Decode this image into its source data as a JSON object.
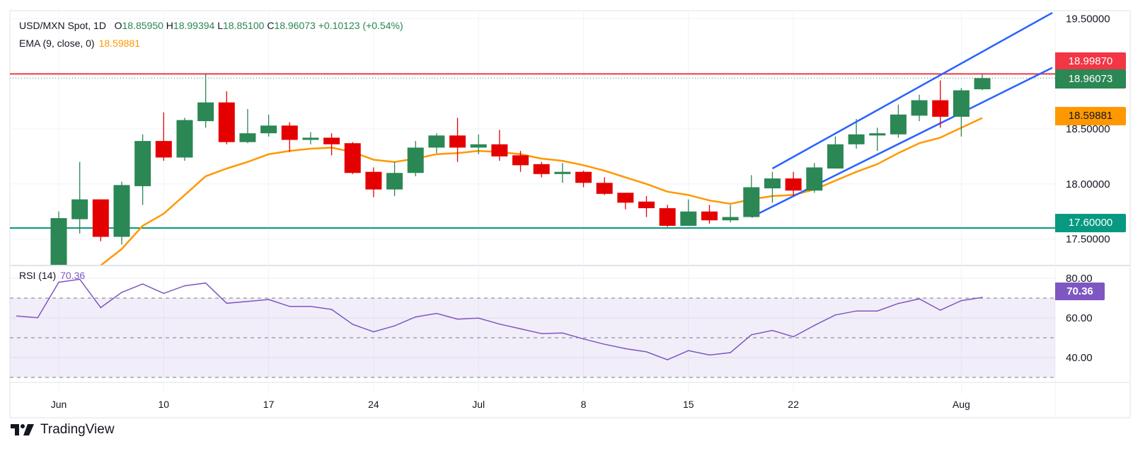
{
  "header": {
    "symbol": "USD/MXN Spot, 1D",
    "open_label": "O",
    "open": "18.85950",
    "high_label": "H",
    "high": "18.99394",
    "low_label": "L",
    "low": "18.85100",
    "close_label": "C",
    "close": "18.96073",
    "change": "+0.10123 (+0.54%)",
    "ema_label": "EMA (9, close, 0)",
    "ema_value": "18.59881"
  },
  "rsi_legend": {
    "label": "RSI (14)",
    "value": "70.36"
  },
  "badges": {
    "resistance": "18.99870",
    "last_price": "18.96073",
    "ema": "18.59881",
    "support": "17.60000",
    "rsi": "70.36"
  },
  "colors": {
    "up": "#2b8754",
    "down": "#e50000",
    "ema": "#ff9800",
    "channel": "#2962ff",
    "resistance": "#f23645",
    "support": "#089981",
    "rsi": "#7e57c2"
  },
  "brand": {
    "name": "TradingView"
  },
  "chart_data": [
    {
      "type": "candlestick",
      "title": "USD/MXN Spot, 1D",
      "ylim": [
        17.31,
        19.57
      ],
      "y_ticks": [
        "19.50000",
        "18.50000",
        "18.00000",
        "17.50000"
      ],
      "y_tick_values": [
        19.5,
        18.5,
        18.0,
        17.5
      ],
      "x_ticks": [
        {
          "date": "Jun 3",
          "label": "Jun"
        },
        {
          "date": "Jun 10",
          "label": "10"
        },
        {
          "date": "Jun 17",
          "label": "17"
        },
        {
          "date": "Jun 24",
          "label": "24"
        },
        {
          "date": "Jul 1",
          "label": "Jul"
        },
        {
          "date": "Jul 8",
          "label": "8"
        },
        {
          "date": "Jul 15",
          "label": "15"
        },
        {
          "date": "Jul 22",
          "label": "22"
        },
        {
          "date": "Aug 1",
          "label": "Aug"
        }
      ],
      "grid": true,
      "dates": [
        "May 30",
        "May 31",
        "Jun 3",
        "Jun 4",
        "Jun 5",
        "Jun 6",
        "Jun 7",
        "Jun 10",
        "Jun 11",
        "Jun 12",
        "Jun 13",
        "Jun 14",
        "Jun 17",
        "Jun 18",
        "Jun 19",
        "Jun 20",
        "Jun 21",
        "Jun 24",
        "Jun 25",
        "Jun 26",
        "Jun 27",
        "Jun 28",
        "Jul 1",
        "Jul 2",
        "Jul 3",
        "Jul 4",
        "Jul 5",
        "Jul 8",
        "Jul 9",
        "Jul 10",
        "Jul 11",
        "Jul 12",
        "Jul 15",
        "Jul 16",
        "Jul 17",
        "Jul 18",
        "Jul 19",
        "Jul 22",
        "Jul 23",
        "Jul 24",
        "Jul 25",
        "Jul 26",
        "Jul 29",
        "Jul 30",
        "Jul 31",
        "Aug 1",
        "Aug 2"
      ],
      "candles": [
        {
          "date": "Jun 3",
          "o": 17.0,
          "h": 17.75,
          "l": 16.99,
          "c": 17.69
        },
        {
          "date": "Jun 4",
          "o": 17.68,
          "h": 18.2,
          "l": 17.55,
          "c": 17.86
        },
        {
          "date": "Jun 5",
          "o": 17.86,
          "h": 17.86,
          "l": 17.48,
          "c": 17.52
        },
        {
          "date": "Jun 6",
          "o": 17.52,
          "h": 18.02,
          "l": 17.45,
          "c": 17.99
        },
        {
          "date": "Jun 7",
          "o": 17.98,
          "h": 18.45,
          "l": 17.81,
          "c": 18.39
        },
        {
          "date": "Jun 10",
          "o": 18.39,
          "h": 18.65,
          "l": 18.21,
          "c": 18.24
        },
        {
          "date": "Jun 11",
          "o": 18.24,
          "h": 18.6,
          "l": 18.21,
          "c": 18.58
        },
        {
          "date": "Jun 12",
          "o": 18.57,
          "h": 19.0,
          "l": 18.51,
          "c": 18.74
        },
        {
          "date": "Jun 13",
          "o": 18.74,
          "h": 18.84,
          "l": 18.36,
          "c": 18.38
        },
        {
          "date": "Jun 14",
          "o": 18.38,
          "h": 18.68,
          "l": 18.37,
          "c": 18.46
        },
        {
          "date": "Jun 17",
          "o": 18.46,
          "h": 18.63,
          "l": 18.43,
          "c": 18.53
        },
        {
          "date": "Jun 18",
          "o": 18.53,
          "h": 18.56,
          "l": 18.29,
          "c": 18.4
        },
        {
          "date": "Jun 19",
          "o": 18.4,
          "h": 18.47,
          "l": 18.36,
          "c": 18.42
        },
        {
          "date": "Jun 20",
          "o": 18.42,
          "h": 18.46,
          "l": 18.26,
          "c": 18.36
        },
        {
          "date": "Jun 21",
          "o": 18.37,
          "h": 18.38,
          "l": 18.09,
          "c": 18.1
        },
        {
          "date": "Jun 24",
          "o": 18.11,
          "h": 18.15,
          "l": 17.88,
          "c": 17.95
        },
        {
          "date": "Jun 25",
          "o": 17.95,
          "h": 18.2,
          "l": 17.89,
          "c": 18.1
        },
        {
          "date": "Jun 26",
          "o": 18.1,
          "h": 18.39,
          "l": 18.07,
          "c": 18.33
        },
        {
          "date": "Jun 27",
          "o": 18.33,
          "h": 18.46,
          "l": 18.28,
          "c": 18.44
        },
        {
          "date": "Jun 28",
          "o": 18.44,
          "h": 18.6,
          "l": 18.2,
          "c": 18.33
        },
        {
          "date": "Jul 1",
          "o": 18.33,
          "h": 18.45,
          "l": 18.27,
          "c": 18.36
        },
        {
          "date": "Jul 2",
          "o": 18.36,
          "h": 18.49,
          "l": 18.21,
          "c": 18.25
        },
        {
          "date": "Jul 3",
          "o": 18.26,
          "h": 18.3,
          "l": 18.11,
          "c": 18.17
        },
        {
          "date": "Jul 4",
          "o": 18.18,
          "h": 18.2,
          "l": 18.06,
          "c": 18.09
        },
        {
          "date": "Jul 5",
          "o": 18.09,
          "h": 18.19,
          "l": 18.01,
          "c": 18.11
        },
        {
          "date": "Jul 8",
          "o": 18.11,
          "h": 18.12,
          "l": 17.97,
          "c": 18.01
        },
        {
          "date": "Jul 9",
          "o": 18.01,
          "h": 18.06,
          "l": 17.9,
          "c": 17.91
        },
        {
          "date": "Jul 10",
          "o": 17.92,
          "h": 17.92,
          "l": 17.77,
          "c": 17.83
        },
        {
          "date": "Jul 11",
          "o": 17.84,
          "h": 17.89,
          "l": 17.7,
          "c": 17.78
        },
        {
          "date": "Jul 12",
          "o": 17.78,
          "h": 17.81,
          "l": 17.61,
          "c": 17.62
        },
        {
          "date": "Jul 15",
          "o": 17.62,
          "h": 17.86,
          "l": 17.62,
          "c": 17.75
        },
        {
          "date": "Jul 16",
          "o": 17.75,
          "h": 17.81,
          "l": 17.64,
          "c": 17.67
        },
        {
          "date": "Jul 17",
          "o": 17.67,
          "h": 17.81,
          "l": 17.65,
          "c": 17.7
        },
        {
          "date": "Jul 18",
          "o": 17.7,
          "h": 18.08,
          "l": 17.7,
          "c": 17.97
        },
        {
          "date": "Jul 19",
          "o": 17.96,
          "h": 18.11,
          "l": 17.83,
          "c": 18.05
        },
        {
          "date": "Jul 22",
          "o": 18.05,
          "h": 18.11,
          "l": 17.89,
          "c": 17.94
        },
        {
          "date": "Jul 23",
          "o": 17.94,
          "h": 18.19,
          "l": 17.92,
          "c": 18.15
        },
        {
          "date": "Jul 24",
          "o": 18.14,
          "h": 18.43,
          "l": 18.14,
          "c": 18.36
        },
        {
          "date": "Jul 25",
          "o": 18.36,
          "h": 18.59,
          "l": 18.32,
          "c": 18.45
        },
        {
          "date": "Jul 26",
          "o": 18.44,
          "h": 18.51,
          "l": 18.3,
          "c": 18.46
        },
        {
          "date": "Jul 29",
          "o": 18.45,
          "h": 18.72,
          "l": 18.42,
          "c": 18.63
        },
        {
          "date": "Jul 30",
          "o": 18.62,
          "h": 18.81,
          "l": 18.57,
          "c": 18.76
        },
        {
          "date": "Jul 31",
          "o": 18.76,
          "h": 18.94,
          "l": 18.51,
          "c": 18.61
        },
        {
          "date": "Aug 1",
          "o": 18.61,
          "h": 18.87,
          "l": 18.43,
          "c": 18.85
        },
        {
          "date": "Aug 2",
          "o": 18.8595,
          "h": 18.99394,
          "l": 18.851,
          "c": 18.96073
        }
      ],
      "ema": {
        "name": "EMA (9, close, 0)",
        "start_date": "Jun 3",
        "values": [
          17.05,
          17.17,
          17.26,
          17.41,
          17.62,
          17.73,
          17.9,
          18.07,
          18.14,
          18.2,
          18.27,
          18.3,
          18.32,
          18.33,
          18.29,
          18.22,
          18.2,
          18.23,
          18.27,
          18.28,
          18.3,
          18.29,
          18.27,
          18.23,
          18.21,
          18.17,
          18.12,
          18.06,
          18.0,
          17.93,
          17.9,
          17.85,
          17.82,
          17.86,
          17.89,
          17.9,
          17.95,
          18.03,
          18.11,
          18.18,
          18.28,
          18.37,
          18.42,
          18.51,
          18.59881
        ]
      },
      "horizontal_lines": [
        {
          "role": "resistance",
          "price": 18.9987
        },
        {
          "role": "support",
          "price": 17.6
        }
      ],
      "last_price": 18.96073,
      "channel": [
        {
          "role": "upper",
          "from": {
            "date": "Jul 19",
            "price": 18.14
          },
          "to": {
            "date": "Aug 2",
            "price": 19.2
          },
          "extend": "right"
        },
        {
          "role": "lower",
          "from": {
            "date": "Jul 18",
            "price": 17.7
          },
          "to": {
            "date": "Aug 2",
            "price": 18.74
          },
          "extend": "right"
        }
      ]
    },
    {
      "type": "line",
      "title": "RSI (14)",
      "ylim": [
        27.5,
        85
      ],
      "y_ticks": [
        "80.00",
        "60.00",
        "40.00"
      ],
      "y_tick_values": [
        80,
        60,
        40
      ],
      "bands": {
        "upper": 70,
        "middle": 50,
        "lower": 30
      },
      "start_date": "May 30",
      "values": [
        61.0,
        60.1,
        78.0,
        79.5,
        65.2,
        72.9,
        77.1,
        72.4,
        76.2,
        77.6,
        67.4,
        68.3,
        69.3,
        65.8,
        65.8,
        64.3,
        56.8,
        53.0,
        56.0,
        60.5,
        62.3,
        59.4,
        59.9,
        56.9,
        54.5,
        52.1,
        52.4,
        49.4,
        46.7,
        44.5,
        42.9,
        38.9,
        43.5,
        41.3,
        42.5,
        51.5,
        53.7,
        50.5,
        56.2,
        61.5,
        63.5,
        63.5,
        67.3,
        69.6,
        63.9,
        68.7,
        70.36
      ]
    }
  ]
}
